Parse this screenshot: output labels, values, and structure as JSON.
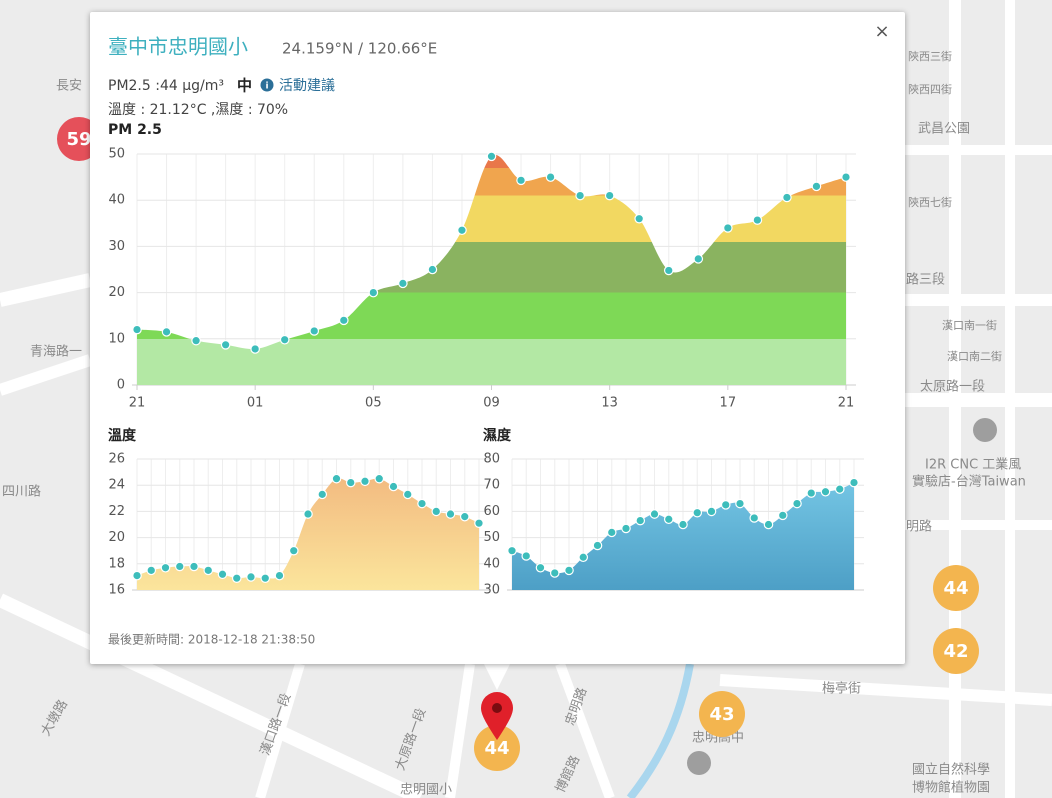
{
  "map": {
    "labels": [
      "長安",
      "青海路一",
      "四川路",
      "武昌公園",
      "路三段",
      "太原路一段",
      "I2R CNC 工業風",
      "實驗店-台灣Taiwan",
      "明路",
      "梅亭街",
      "國立自然科學",
      "博物館植物園",
      "忠明國小",
      "忠明高中",
      "漢口路一段",
      "大原路一段",
      "博館路",
      "忠明路",
      "大墩路",
      "陝西三街",
      "陝西四街",
      "陝西七街",
      "漢口南一街",
      "漢口南二街"
    ],
    "markers": [
      "59",
      "44",
      "42",
      "43",
      "44"
    ]
  },
  "popup": {
    "title": "臺中市忠明國小",
    "coords": "24.159°N / 120.66°E",
    "close": "×",
    "pm_line": "PM2.5 :44 μg/m³",
    "level": "中",
    "advice": "活動建議",
    "weather_line": "溫度 : 21.12°C ,濕度 : 70%",
    "updated": "最後更新時間: 2018-12-18 21:38:50"
  },
  "chart_data": [
    {
      "type": "area",
      "title": "PM 2.5",
      "categories": [
        "21",
        null,
        null,
        null,
        "01",
        null,
        null,
        null,
        "05",
        null,
        null,
        null,
        "09",
        null,
        null,
        null,
        "13",
        null,
        null,
        null,
        "17",
        null,
        null,
        null,
        "21"
      ],
      "values": [
        12,
        11.5,
        9.6,
        8.7,
        7.8,
        9.8,
        11.7,
        14,
        20,
        22,
        25,
        33.5,
        49.5,
        44.3,
        45,
        41,
        41,
        36,
        24.8,
        27.3,
        34,
        35.7,
        40.6,
        43,
        45
      ],
      "ylim": [
        0,
        50
      ],
      "yticks": [
        0,
        10,
        20,
        30,
        40,
        50
      ],
      "grid": true,
      "marker_color": "#3dbdbb",
      "color_bands": [
        {
          "from": 0,
          "to": 10,
          "color": "#b3e8a4"
        },
        {
          "from": 10,
          "to": 20,
          "color": "#7ed956"
        },
        {
          "from": 20,
          "to": 31,
          "color": "#8ab360"
        },
        {
          "from": 31,
          "to": 41,
          "color": "#f2d861"
        },
        {
          "from": 41,
          "to": 47,
          "color": "#f0a54e"
        },
        {
          "from": 47,
          "to": 50,
          "color": "#e9774a"
        }
      ]
    },
    {
      "type": "area",
      "title": "溫度",
      "values": [
        17.1,
        17.5,
        17.7,
        17.8,
        17.8,
        17.5,
        17.2,
        16.9,
        17.0,
        16.9,
        17.1,
        19.0,
        21.8,
        23.3,
        24.5,
        24.2,
        24.3,
        24.5,
        23.9,
        23.3,
        22.6,
        22.0,
        21.8,
        21.6,
        21.1
      ],
      "ylim": [
        16,
        26
      ],
      "yticks": [
        16,
        18,
        20,
        22,
        24,
        26
      ],
      "grid": true,
      "marker_color": "#3dbdbb",
      "fill_top": "#f1b47c",
      "fill_bottom": "#fbe59c"
    },
    {
      "type": "area",
      "title": "濕度",
      "values": [
        45,
        43,
        38.5,
        36.5,
        37.5,
        42.5,
        47,
        52,
        53.5,
        56.5,
        59,
        57,
        55,
        59.5,
        60,
        62.5,
        63,
        57.5,
        55,
        58.5,
        63,
        67,
        67.5,
        68.5,
        71
      ],
      "ylim": [
        30,
        80
      ],
      "yticks": [
        30,
        40,
        50,
        60,
        70,
        80
      ],
      "grid": true,
      "marker_color": "#3dbdbb",
      "fill_top": "#7ccdea",
      "fill_bottom": "#4d9fc6"
    }
  ]
}
